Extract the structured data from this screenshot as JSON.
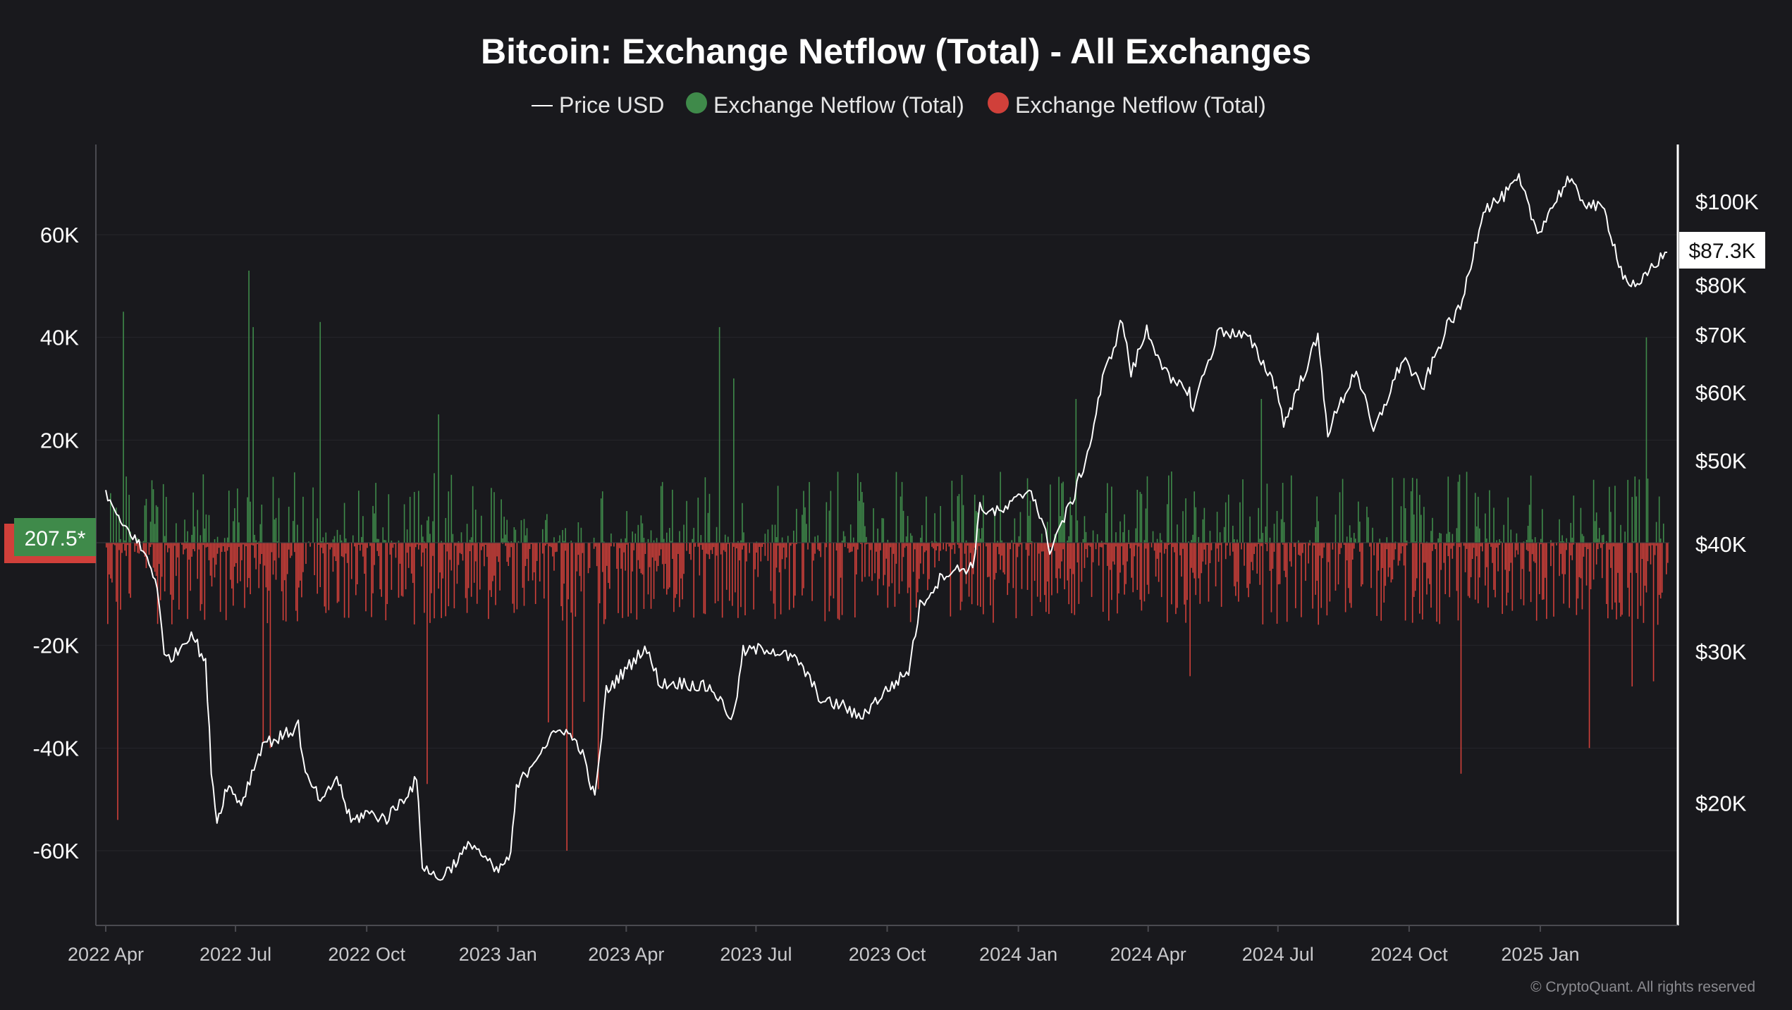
{
  "chart_data": {
    "type": "bar",
    "title": "Bitcoin: Exchange Netflow (Total) - All Exchanges",
    "legend": [
      {
        "name": "Price USD",
        "marker": "line",
        "color": "#ffffff"
      },
      {
        "name": "Exchange Netflow (Total)",
        "marker": "dot",
        "color": "#3f8a4a"
      },
      {
        "name": "Exchange Netflow (Total)",
        "marker": "dot",
        "color": "#d0403a"
      }
    ],
    "legend_placement": "top-center",
    "x_ticks": [
      "2022 Apr",
      "2022 Jul",
      "2022 Oct",
      "2023 Jan",
      "2023 Apr",
      "2023 Jul",
      "2023 Oct",
      "2024 Jan",
      "2024 Apr",
      "2024 Jul",
      "2024 Oct",
      "2025 Jan"
    ],
    "x_range": [
      "2022-04-01",
      "2025-03-31"
    ],
    "y_left": {
      "ticks": [
        "60K",
        "40K",
        "20K",
        "-20K",
        "-40K",
        "-60K"
      ],
      "values": [
        60000,
        40000,
        20000,
        -20000,
        -40000,
        -60000
      ],
      "ylim": [
        -75000,
        78000
      ]
    },
    "y_right": {
      "scale": "log",
      "ticks": [
        "$100K",
        "$80K",
        "$70K",
        "$60K",
        "$50K",
        "$40K",
        "$30K",
        "$20K"
      ],
      "values": [
        100000,
        80000,
        70000,
        60000,
        50000,
        40000,
        30000,
        20000
      ],
      "ylim": [
        15500,
        128000
      ]
    },
    "current_netflow_label": "207.5*",
    "current_price_label": "$87.3K",
    "grid": true,
    "colors": {
      "inflow": "#3f8a4a",
      "outflow": "#d0403a",
      "price": "#ffffff",
      "background": "#19191d"
    },
    "price_series": {
      "name": "Price USD",
      "points": [
        [
          "2022-04-01",
          46000
        ],
        [
          "2022-04-10",
          42500
        ],
        [
          "2022-04-20",
          41000
        ],
        [
          "2022-04-30",
          38500
        ],
        [
          "2022-05-07",
          36000
        ],
        [
          "2022-05-12",
          29500
        ],
        [
          "2022-05-20",
          29800
        ],
        [
          "2022-05-31",
          31700
        ],
        [
          "2022-06-10",
          29000
        ],
        [
          "2022-06-14",
          22000
        ],
        [
          "2022-06-18",
          19000
        ],
        [
          "2022-06-25",
          21000
        ],
        [
          "2022-07-05",
          20000
        ],
        [
          "2022-07-20",
          23500
        ],
        [
          "2022-07-31",
          23800
        ],
        [
          "2022-08-10",
          24300
        ],
        [
          "2022-08-14",
          24700
        ],
        [
          "2022-08-19",
          21500
        ],
        [
          "2022-08-31",
          20000
        ],
        [
          "2022-09-10",
          21500
        ],
        [
          "2022-09-20",
          19000
        ],
        [
          "2022-09-30",
          19500
        ],
        [
          "2022-10-15",
          19200
        ],
        [
          "2022-10-30",
          20600
        ],
        [
          "2022-11-05",
          21300
        ],
        [
          "2022-11-09",
          17000
        ],
        [
          "2022-11-20",
          16300
        ],
        [
          "2022-12-01",
          17000
        ],
        [
          "2022-12-14",
          18000
        ],
        [
          "2022-12-31",
          16600
        ],
        [
          "2023-01-10",
          17400
        ],
        [
          "2023-01-14",
          20800
        ],
        [
          "2023-01-31",
          23100
        ],
        [
          "2023-02-15",
          24500
        ],
        [
          "2023-02-28",
          23200
        ],
        [
          "2023-03-10",
          20200
        ],
        [
          "2023-03-18",
          27000
        ],
        [
          "2023-03-31",
          28500
        ],
        [
          "2023-04-14",
          30400
        ],
        [
          "2023-04-25",
          27500
        ],
        [
          "2023-05-10",
          27600
        ],
        [
          "2023-05-31",
          27200
        ],
        [
          "2023-06-15",
          25000
        ],
        [
          "2023-06-22",
          30000
        ],
        [
          "2023-07-10",
          30300
        ],
        [
          "2023-07-31",
          29200
        ],
        [
          "2023-08-17",
          26200
        ],
        [
          "2023-08-31",
          26000
        ],
        [
          "2023-09-11",
          25100
        ],
        [
          "2023-09-30",
          27000
        ],
        [
          "2023-10-16",
          28500
        ],
        [
          "2023-10-24",
          33900
        ],
        [
          "2023-11-10",
          37000
        ],
        [
          "2023-11-30",
          37700
        ],
        [
          "2023-12-05",
          44000
        ],
        [
          "2023-12-20",
          43500
        ],
        [
          "2024-01-10",
          46500
        ],
        [
          "2024-01-23",
          39500
        ],
        [
          "2024-02-08",
          45000
        ],
        [
          "2024-02-20",
          52000
        ],
        [
          "2024-02-29",
          62000
        ],
        [
          "2024-03-14",
          73000
        ],
        [
          "2024-03-20",
          63000
        ],
        [
          "2024-03-31",
          71000
        ],
        [
          "2024-04-17",
          61500
        ],
        [
          "2024-04-30",
          60500
        ],
        [
          "2024-05-01",
          57000
        ],
        [
          "2024-05-21",
          71000
        ],
        [
          "2024-06-10",
          69500
        ],
        [
          "2024-06-30",
          61000
        ],
        [
          "2024-07-05",
          55000
        ],
        [
          "2024-07-29",
          69500
        ],
        [
          "2024-08-05",
          54000
        ],
        [
          "2024-08-25",
          64000
        ],
        [
          "2024-09-06",
          53800
        ],
        [
          "2024-09-27",
          66000
        ],
        [
          "2024-10-10",
          60500
        ],
        [
          "2024-10-29",
          72500
        ],
        [
          "2024-11-06",
          75000
        ],
        [
          "2024-11-22",
          98000
        ],
        [
          "2024-12-05",
          101000
        ],
        [
          "2024-12-17",
          106000
        ],
        [
          "2024-12-30",
          92000
        ],
        [
          "2025-01-20",
          106000
        ],
        [
          "2025-02-01",
          100000
        ],
        [
          "2025-02-15",
          97500
        ],
        [
          "2025-02-28",
          82000
        ],
        [
          "2025-03-10",
          79000
        ],
        [
          "2025-03-20",
          84000
        ],
        [
          "2025-03-31",
          87300
        ]
      ]
    }
  },
  "footer": {
    "copyright": "© CryptoQuant. All rights reserved"
  }
}
